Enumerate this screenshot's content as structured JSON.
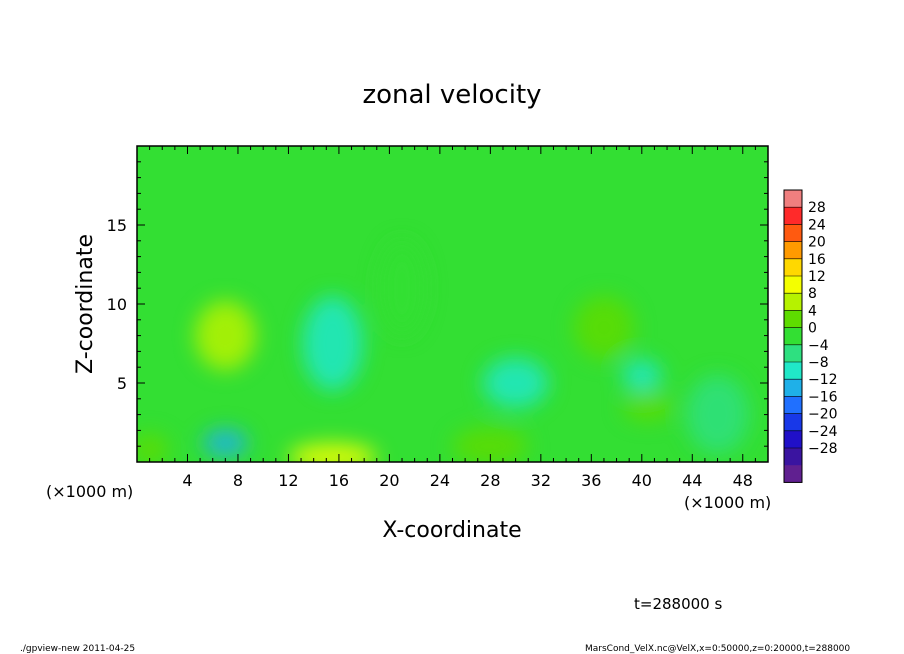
{
  "chart_data": {
    "type": "heatmap",
    "title": "zonal velocity",
    "xlabel": "X-coordinate",
    "ylabel": "Z-coordinate",
    "x_unit_label": "(×1000 m)",
    "y_unit_label": "(×1000 m)",
    "xlim": [
      0,
      50
    ],
    "ylim": [
      0,
      20
    ],
    "x_ticks": [
      4,
      8,
      12,
      16,
      20,
      24,
      28,
      32,
      36,
      40,
      44,
      48
    ],
    "x_tick_labels": [
      "4",
      "8",
      "12",
      "16",
      "20",
      "24",
      "28",
      "32",
      "36",
      "40",
      "44",
      "48"
    ],
    "y_ticks": [
      5,
      10,
      15
    ],
    "y_tick_labels": [
      "5",
      "10",
      "15"
    ],
    "colorbar": {
      "levels": [
        28,
        24,
        20,
        16,
        12,
        8,
        4,
        0,
        -4,
        -8,
        -12,
        -16,
        -20,
        -24,
        -28
      ],
      "labels": [
        "28",
        "24",
        "20",
        "16",
        "12",
        "8",
        "4",
        "0",
        "−4",
        "−8",
        "−12",
        "−16",
        "−20",
        "−24",
        "−28"
      ],
      "colors": [
        "#f07f7f",
        "#ff2a2a",
        "#ff5a10",
        "#ff9a00",
        "#ffd800",
        "#f4ff00",
        "#b6f200",
        "#5edc00",
        "#33df33",
        "#2ee080",
        "#20e8c8",
        "#1fb0e8",
        "#2070ff",
        "#1838e8",
        "#2010c8",
        "#3a14a0",
        "#602090"
      ]
    },
    "features": [
      {
        "x": 7.0,
        "z": 8.0,
        "value": 8,
        "sx": 2.4,
        "sz": 2.2
      },
      {
        "x": 15.5,
        "z": 0.3,
        "value": 12,
        "sx": 3.5,
        "sz": 0.9
      },
      {
        "x": 7.0,
        "z": 1.2,
        "value": -12,
        "sx": 1.8,
        "sz": 0.9
      },
      {
        "x": 15.5,
        "z": 7.5,
        "value": -8,
        "sx": 2.4,
        "sz": 3.0
      },
      {
        "x": 40.0,
        "z": 5.5,
        "value": -8,
        "sx": 1.6,
        "sz": 1.0
      },
      {
        "x": 40.5,
        "z": 3.5,
        "value": 6,
        "sx": 2.0,
        "sz": 0.9
      },
      {
        "x": 37.0,
        "z": 8.5,
        "value": 4,
        "sx": 2.4,
        "sz": 2.0
      },
      {
        "x": 30.0,
        "z": 5.0,
        "value": -6,
        "sx": 2.6,
        "sz": 1.6
      },
      {
        "x": 21.0,
        "z": 11.0,
        "value": 3,
        "sx": 1.8,
        "sz": 3.0
      },
      {
        "x": 1.0,
        "z": 0.8,
        "value": 6,
        "sx": 1.5,
        "sz": 1.0
      },
      {
        "x": 28.0,
        "z": 1.0,
        "value": 4,
        "sx": 3.0,
        "sz": 1.2
      },
      {
        "x": 46.0,
        "z": 3.0,
        "value": -4,
        "sx": 2.5,
        "sz": 2.5
      }
    ],
    "background_value": 1
  },
  "annotations": {
    "time": "t=288000 s",
    "footer_left": "./gpview-new  2011-04-25",
    "footer_right": "MarsCond_VelX.nc@VelX,x=0:50000,z=0:20000,t=288000"
  }
}
